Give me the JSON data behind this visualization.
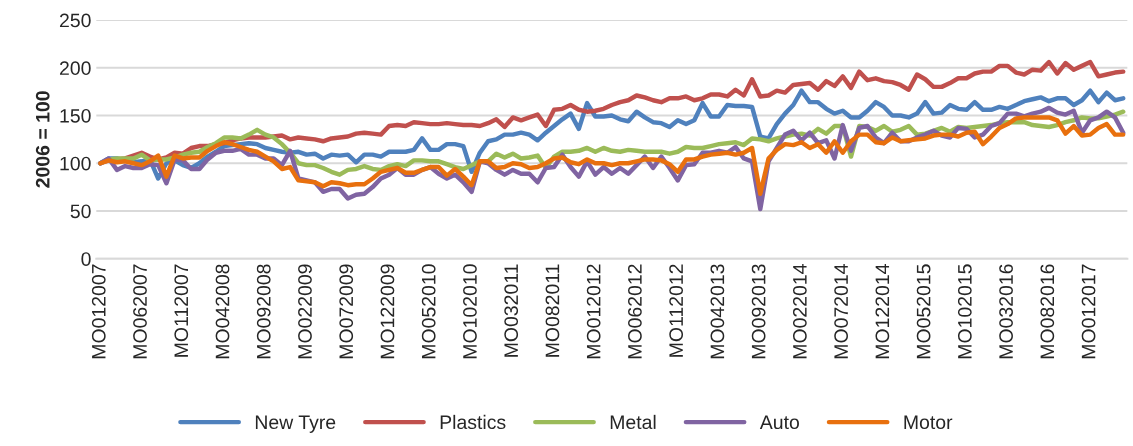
{
  "chart_data": {
    "type": "line",
    "ylabel": "2006 = 100",
    "categories": [
      "MO012007",
      null,
      null,
      null,
      null,
      "MO062007",
      null,
      null,
      null,
      null,
      "MO112007",
      null,
      null,
      null,
      null,
      "MO042008",
      null,
      null,
      null,
      null,
      "MO092008",
      null,
      null,
      null,
      null,
      "MO022009",
      null,
      null,
      null,
      null,
      "MO072009",
      null,
      null,
      null,
      null,
      "MO122009",
      null,
      null,
      null,
      null,
      "MO052010",
      null,
      null,
      null,
      null,
      "MO102010",
      null,
      null,
      null,
      null,
      "MO032011",
      null,
      null,
      null,
      null,
      "MO082011",
      null,
      null,
      null,
      null,
      "MO012012",
      null,
      null,
      null,
      null,
      "MO062012",
      null,
      null,
      null,
      null,
      "MO112012",
      null,
      null,
      null,
      null,
      "MO042013",
      null,
      null,
      null,
      null,
      "MO092013",
      null,
      null,
      null,
      null,
      "MO022014",
      null,
      null,
      null,
      null,
      "MO072014",
      null,
      null,
      null,
      null,
      "MO122014",
      null,
      null,
      null,
      null,
      "MO052015",
      null,
      null,
      null,
      null,
      "MO102015",
      null,
      null,
      null,
      null,
      "MO032016",
      null,
      null,
      null,
      null,
      "MO082016",
      null,
      null,
      null,
      null,
      "MO012017",
      null,
      null,
      null,
      null
    ],
    "series": [
      {
        "name": "New Tyre",
        "color": "#4f81bd",
        "values": [
          100,
          105,
          105,
          103,
          101,
          102,
          104,
          84,
          100,
          103,
          98,
          95,
          100,
          107,
          112,
          118,
          119,
          120,
          121,
          120,
          116,
          114,
          112,
          111,
          112,
          109,
          110,
          105,
          109,
          108,
          109,
          101,
          109,
          109,
          107,
          112,
          112,
          112,
          114,
          126,
          114,
          114,
          120,
          120,
          118,
          91,
          111,
          123,
          125,
          130,
          130,
          132,
          130,
          124,
          132,
          139,
          146,
          152,
          136,
          163,
          149,
          149,
          150,
          146,
          144,
          154,
          148,
          143,
          142,
          138,
          145,
          141,
          145,
          163,
          149,
          149,
          161,
          160,
          160,
          159,
          128,
          126,
          141,
          152,
          161,
          176,
          164,
          164,
          157,
          152,
          155,
          148,
          148,
          155,
          164,
          159,
          150,
          150,
          148,
          152,
          164,
          152,
          153,
          161,
          157,
          156,
          164,
          156,
          156,
          159,
          157,
          161,
          165,
          167,
          169,
          165,
          168,
          168,
          161,
          166,
          176,
          164,
          174,
          166,
          168
        ]
      },
      {
        "name": "Plastics",
        "color": "#c0504d",
        "values": [
          100,
          103,
          104,
          105,
          108,
          111,
          107,
          104,
          106,
          111,
          110,
          116,
          118,
          118,
          120,
          121,
          124,
          126,
          127,
          127,
          127,
          128,
          129,
          125,
          127,
          126,
          125,
          123,
          126,
          127,
          128,
          131,
          132,
          131,
          130,
          139,
          140,
          139,
          143,
          142,
          141,
          141,
          142,
          141,
          140,
          140,
          139,
          142,
          146,
          138,
          148,
          145,
          148,
          151,
          139,
          156,
          157,
          161,
          156,
          154,
          155,
          157,
          161,
          164,
          166,
          171,
          169,
          166,
          164,
          168,
          168,
          170,
          166,
          168,
          172,
          172,
          170,
          177,
          171,
          188,
          170,
          171,
          176,
          174,
          182,
          183,
          184,
          177,
          186,
          181,
          191,
          179,
          196,
          187,
          189,
          186,
          185,
          182,
          177,
          193,
          188,
          180,
          180,
          184,
          189,
          189,
          194,
          196,
          196,
          202,
          202,
          195,
          193,
          198,
          197,
          206,
          194,
          205,
          198,
          202,
          206,
          191,
          193,
          195,
          196
        ]
      },
      {
        "name": "Metal",
        "color": "#9bbb59",
        "values": [
          100,
          104,
          105,
          105,
          105,
          109,
          103,
          104,
          104,
          106,
          109,
          111,
          112,
          117,
          121,
          127,
          127,
          126,
          130,
          135,
          130,
          127,
          120,
          111,
          100,
          98,
          98,
          95,
          91,
          88,
          93,
          94,
          97,
          94,
          93,
          97,
          99,
          97,
          103,
          103,
          102,
          102,
          99,
          96,
          94,
          98,
          102,
          102,
          110,
          106,
          110,
          105,
          106,
          108,
          95,
          107,
          112,
          112,
          113,
          116,
          112,
          116,
          113,
          112,
          114,
          113,
          112,
          112,
          112,
          110,
          112,
          117,
          116,
          116,
          118,
          120,
          121,
          122,
          119,
          126,
          125,
          123,
          126,
          128,
          130,
          131,
          129,
          136,
          131,
          139,
          139,
          107,
          139,
          138,
          134,
          139,
          133,
          135,
          139,
          130,
          131,
          134,
          137,
          133,
          138,
          137,
          138,
          139,
          140,
          142,
          143,
          143,
          143,
          140,
          139,
          138,
          140,
          143,
          145,
          148,
          147,
          147,
          149,
          151,
          154
        ]
      },
      {
        "name": "Auto",
        "color": "#8064a2",
        "values": [
          100,
          105,
          93,
          97,
          95,
          95,
          99,
          98,
          79,
          104,
          103,
          94,
          94,
          104,
          111,
          113,
          113,
          115,
          109,
          109,
          105,
          105,
          98,
          113,
          84,
          82,
          80,
          70,
          73,
          73,
          63,
          67,
          68,
          75,
          84,
          88,
          95,
          88,
          88,
          93,
          96,
          89,
          84,
          88,
          80,
          70,
          102,
          100,
          93,
          88,
          93,
          89,
          89,
          80,
          95,
          96,
          109,
          96,
          86,
          102,
          88,
          96,
          89,
          95,
          89,
          98,
          107,
          95,
          107,
          95,
          82,
          98,
          99,
          111,
          111,
          113,
          111,
          117,
          105,
          102,
          52,
          102,
          116,
          130,
          134,
          124,
          132,
          121,
          124,
          105,
          140,
          113,
          137,
          139,
          127,
          121,
          132,
          123,
          123,
          127,
          130,
          134,
          129,
          127,
          137,
          136,
          127,
          130,
          139,
          142,
          152,
          152,
          149,
          152,
          154,
          158,
          153,
          151,
          155,
          132,
          145,
          148,
          154,
          148,
          132
        ]
      },
      {
        "name": "Motor",
        "color": "#e8700e",
        "values": [
          100,
          103,
          101,
          102,
          100,
          98,
          102,
          108,
          86,
          108,
          105,
          106,
          106,
          113,
          118,
          122,
          120,
          117,
          114,
          112,
          107,
          102,
          94,
          96,
          82,
          81,
          80,
          76,
          80,
          79,
          77,
          78,
          78,
          84,
          91,
          93,
          95,
          90,
          90,
          93,
          96,
          96,
          87,
          94,
          86,
          77,
          102,
          102,
          95,
          96,
          100,
          99,
          95,
          96,
          100,
          105,
          106,
          101,
          99,
          104,
          100,
          100,
          98,
          100,
          100,
          102,
          104,
          104,
          103,
          99,
          91,
          104,
          104,
          107,
          109,
          110,
          111,
          109,
          111,
          116,
          68,
          105,
          114,
          120,
          119,
          122,
          116,
          120,
          111,
          123,
          111,
          123,
          130,
          130,
          122,
          121,
          127,
          123,
          124,
          125,
          126,
          129,
          130,
          130,
          128,
          132,
          133,
          120,
          128,
          137,
          141,
          147,
          148,
          148,
          148,
          148,
          145,
          131,
          139,
          129,
          130,
          137,
          141,
          130,
          130
        ]
      }
    ],
    "ylim": [
      0,
      250
    ],
    "yticks": [
      0,
      50,
      100,
      150,
      200,
      250
    ],
    "grid": "y",
    "legend": "bottom",
    "marker": "none",
    "line_style": "solid"
  }
}
